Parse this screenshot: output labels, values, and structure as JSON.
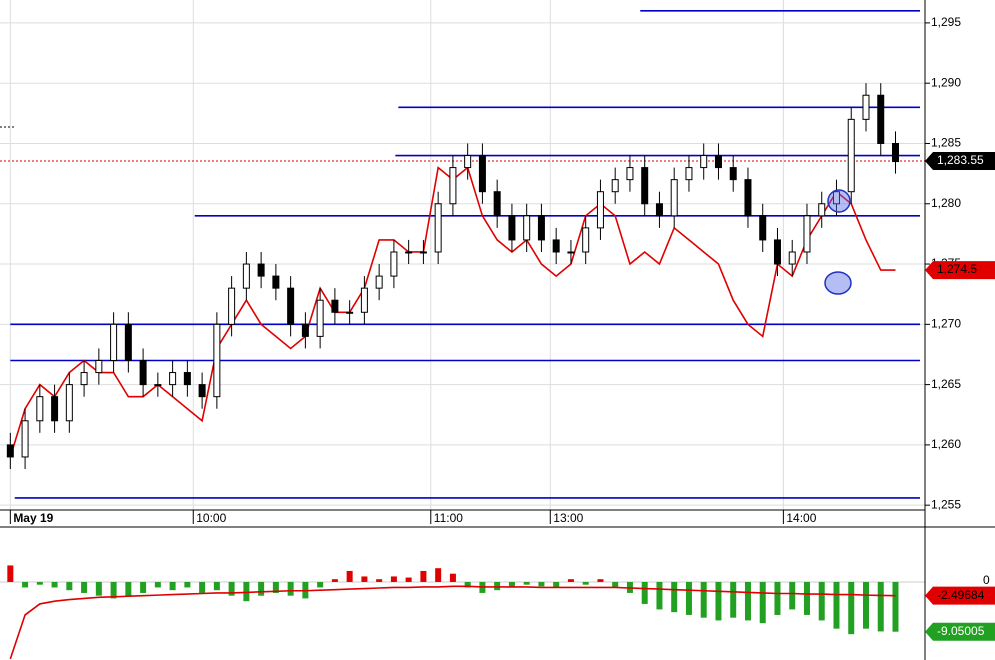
{
  "chart_data": [
    {
      "type": "candlestick",
      "xlim": [
        -0.7,
        62
      ],
      "xticks": [
        {
          "value": 0,
          "label": "May 19"
        },
        {
          "value": 12.4,
          "label": "10:00"
        },
        {
          "value": 28.5,
          "label": "11:00"
        },
        {
          "value": 36.6,
          "label": "13:00"
        },
        {
          "value": 52.4,
          "label": "14:00"
        }
      ],
      "ylim": [
        1254.6,
        1296.9
      ],
      "yticks": [
        {
          "value": 1255,
          "label": "1,255"
        },
        {
          "value": 1260,
          "label": "1,260"
        },
        {
          "value": 1265,
          "label": "1,265"
        },
        {
          "value": 1270,
          "label": "1,270"
        },
        {
          "value": 1275,
          "label": "1,275"
        },
        {
          "value": 1280,
          "label": "1,280"
        },
        {
          "value": 1285,
          "label": "1,285"
        },
        {
          "value": 1290,
          "label": "1,290"
        },
        {
          "value": 1295,
          "label": "1,295"
        }
      ],
      "grid": true,
      "open": [
        1260,
        1259,
        1262,
        1264,
        1262,
        1265,
        1266,
        1267,
        1270,
        1267,
        1265,
        1265,
        1266,
        1265,
        1264,
        1270,
        1273,
        1275,
        1274,
        1273,
        1270,
        1269,
        1272,
        1271,
        1271,
        1273,
        1274,
        1276,
        1276,
        1276,
        1280,
        1283,
        1284,
        1281,
        1279,
        1277,
        1279,
        1277,
        1276,
        1276,
        1278,
        1281,
        1282,
        1283,
        1280,
        1279,
        1282,
        1283,
        1284,
        1283,
        1282,
        1279,
        1277,
        1275,
        1276,
        1279,
        1280,
        1281,
        1287,
        1289,
        1285
      ],
      "high": [
        1261,
        1263,
        1265,
        1265,
        1266,
        1267,
        1268,
        1271,
        1271,
        1268,
        1266,
        1267,
        1267,
        1266,
        1271,
        1274,
        1276,
        1276,
        1275,
        1274,
        1271,
        1273,
        1273,
        1272,
        1274,
        1275,
        1277,
        1277,
        1277,
        1281,
        1284,
        1285,
        1285,
        1282,
        1280,
        1280,
        1280,
        1278,
        1277,
        1279,
        1282,
        1283,
        1284,
        1284,
        1281,
        1283,
        1284,
        1285,
        1285,
        1284,
        1283,
        1280,
        1278,
        1277,
        1280,
        1281,
        1282,
        1288,
        1290,
        1290,
        1286
      ],
      "low": [
        1258,
        1258,
        1261,
        1261,
        1261,
        1264,
        1265,
        1266,
        1266,
        1264,
        1264,
        1264,
        1264,
        1263,
        1263,
        1269,
        1272,
        1273,
        1272,
        1269,
        1268,
        1268,
        1270,
        1270,
        1270,
        1272,
        1273,
        1275,
        1275,
        1275,
        1279,
        1282,
        1280,
        1278,
        1276,
        1276,
        1276,
        1275,
        1275,
        1275,
        1277,
        1280,
        1281,
        1279,
        1278,
        1278,
        1281,
        1282,
        1282,
        1281,
        1278,
        1276,
        1274,
        1274,
        1275,
        1278,
        1279,
        1280,
        1286,
        1284,
        1282.5
      ],
      "close": [
        1259,
        1262,
        1264,
        1262,
        1265,
        1266,
        1267,
        1270,
        1267,
        1265,
        1265,
        1266,
        1265,
        1264,
        1270,
        1273,
        1275,
        1274,
        1273,
        1270,
        1269,
        1272,
        1271,
        1271,
        1273,
        1274,
        1276,
        1276,
        1276,
        1280,
        1283,
        1284,
        1281,
        1279,
        1277,
        1279,
        1277,
        1276,
        1276,
        1278,
        1281,
        1282,
        1283,
        1280,
        1279,
        1282,
        1283,
        1284,
        1283,
        1282,
        1279,
        1277,
        1275,
        1276,
        1279,
        1280,
        1281,
        1287,
        1289,
        1285,
        1283.5
      ],
      "overlay": {
        "color": "#e00000",
        "label": "1,274.5",
        "values": [
          1259,
          1263,
          1265,
          1264,
          1266,
          1267,
          1266,
          1266,
          1264,
          1264,
          1265,
          1264,
          1263,
          1262,
          1268,
          1270,
          1272,
          1270,
          1269,
          1268,
          1269,
          1273,
          1271,
          1271,
          1273,
          1277,
          1277,
          1276,
          1276,
          1283,
          1282,
          1283,
          1279,
          1277,
          1276,
          1277,
          1275,
          1274,
          1275,
          1279,
          1280,
          1279,
          1275,
          1276,
          1275,
          1278,
          1277,
          1276,
          1275,
          1272,
          1270,
          1269,
          1275,
          1274,
          1277,
          1279,
          1281,
          1280,
          1277,
          1274.5,
          1274.5
        ]
      },
      "last_price": {
        "value": 1283.55,
        "label": "1,283.55"
      },
      "level_color": "#0000c8",
      "levels": [
        {
          "value": 1296,
          "from": 42.7
        },
        {
          "value": 1288,
          "from": 26.3
        },
        {
          "value": 1284,
          "from": 26.1
        },
        {
          "value": 1279,
          "from": 12.5
        },
        {
          "value": 1270,
          "from": 0
        },
        {
          "value": 1267,
          "from": 0
        },
        {
          "value": 1255.6,
          "from": 0.3
        }
      ]
    },
    {
      "type": "bar",
      "xlim": [
        -0.7,
        62
      ],
      "ylim": [
        -14.2,
        9.45
      ],
      "yticks": [
        0
      ],
      "up_color": "#e00000",
      "down_color": "#22a022",
      "values": [
        3,
        -1,
        -0.5,
        -1,
        -1.5,
        -2,
        -2.5,
        -3,
        -2.5,
        -2,
        -1,
        -1.5,
        -1,
        -2,
        -1.5,
        -2.5,
        -3.5,
        -2.5,
        -2,
        -2.5,
        -3,
        -1,
        0.5,
        2,
        1,
        0.5,
        1,
        0.8,
        2,
        2.5,
        1.5,
        -1,
        -2,
        -1.5,
        -1,
        -0.5,
        -0.8,
        -1,
        0.5,
        -0.5,
        0.5,
        -1,
        -2,
        -4,
        -5,
        -5.5,
        -6,
        -6.5,
        -7,
        -6.5,
        -7,
        -7.5,
        -6,
        -5,
        -6,
        -7,
        -8.5,
        -9.5,
        -8.5,
        -9,
        -9.05005
      ],
      "last_label": "-9.05005",
      "line": {
        "color": "#e00000",
        "label": "-2.49684",
        "values": [
          -14,
          -6,
          -4,
          -3.5,
          -3.2,
          -3,
          -2.8,
          -2.7,
          -2.6,
          -2.5,
          -2.4,
          -2.3,
          -2.2,
          -2.1,
          -2,
          -2,
          -1.9,
          -1.8,
          -1.7,
          -1.6,
          -1.6,
          -1.5,
          -1.4,
          -1.3,
          -1.2,
          -1.1,
          -1,
          -1,
          -0.9,
          -0.9,
          -0.8,
          -0.8,
          -0.9,
          -0.9,
          -0.9,
          -0.9,
          -1,
          -1,
          -1,
          -1,
          -1,
          -1,
          -1.1,
          -1.2,
          -1.3,
          -1.4,
          -1.5,
          -1.6,
          -1.7,
          -1.8,
          -1.9,
          -2,
          -2.1,
          -2.1,
          -2.2,
          -2.2,
          -2.3,
          -2.3,
          -2.4,
          -2.45,
          -2.49684
        ]
      }
    }
  ]
}
